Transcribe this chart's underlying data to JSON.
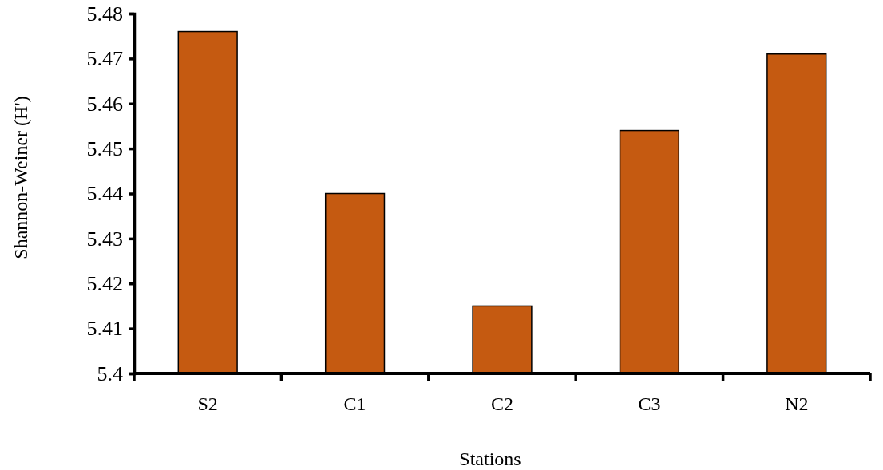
{
  "chart_data": {
    "type": "bar",
    "xlabel": "Stations",
    "ylabel": "Shannon-Weiner (H')",
    "categories": [
      "S2",
      "C1",
      "C2",
      "C3",
      "N2"
    ],
    "values": [
      5.476,
      5.44,
      5.415,
      5.454,
      5.471
    ],
    "color": "#c55a11",
    "ylim": [
      5.4,
      5.48
    ],
    "yticks": [
      {
        "value": 5.4,
        "label": "5.4"
      },
      5.41,
      5.42,
      5.43,
      5.44,
      5.45,
      5.46,
      5.47,
      5.48
    ]
  }
}
